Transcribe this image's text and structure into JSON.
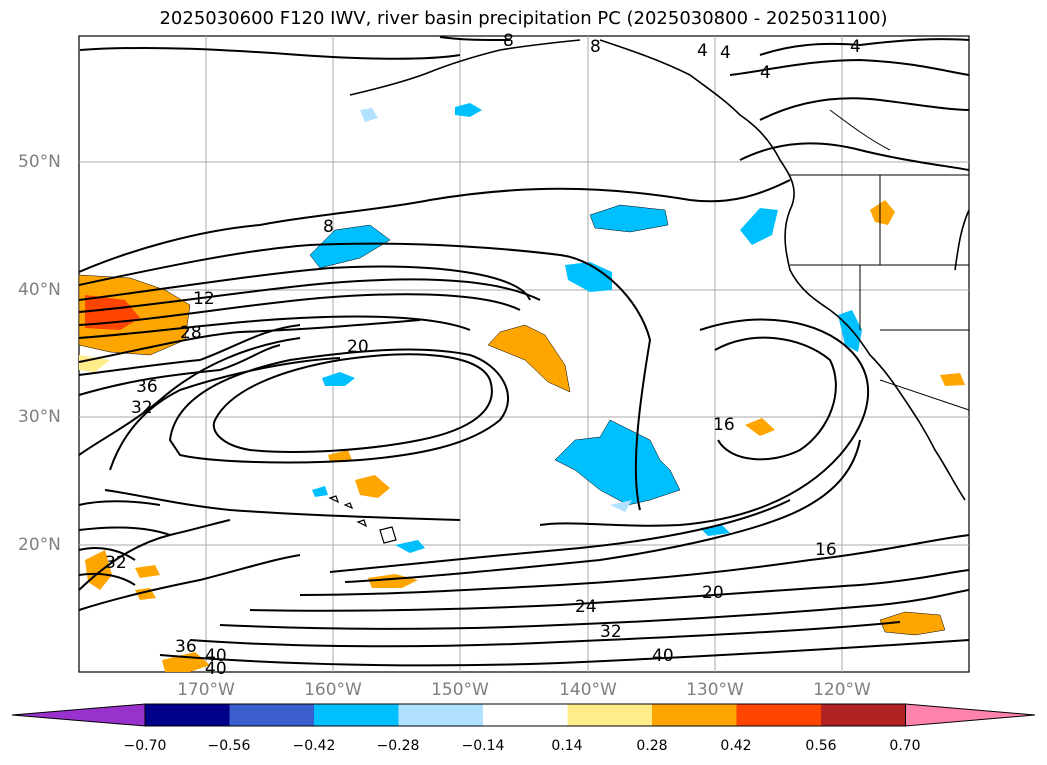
{
  "title": "2025030600 F120 IWV, river basin precipitation PC (2025030800 - 2025031100)",
  "lat_labels": [
    "50°N",
    "40°N",
    "30°N",
    "20°N"
  ],
  "lon_labels": [
    "170°W",
    "160°W",
    "150°W",
    "140°W",
    "130°W",
    "120°W"
  ],
  "contour_labels": [
    "8",
    "8",
    "4",
    "4",
    "4",
    "4",
    "8",
    "12",
    "28",
    "20",
    "36",
    "32",
    "16",
    "16",
    "32",
    "24",
    "20",
    "32",
    "36",
    "40",
    "40",
    "40"
  ],
  "colorbar": {
    "ticks": [
      "−0.70",
      "−0.56",
      "−0.42",
      "−0.28",
      "−0.14",
      "0.14",
      "0.28",
      "0.42",
      "0.56",
      "0.70"
    ],
    "colors": [
      "#9932cc",
      "#00008b",
      "#3a5fcd",
      "#00bfff",
      "#b0e2ff",
      "#ffffff",
      "#ffec8b",
      "#ffa500",
      "#ff4500",
      "#b22222",
      "#ff82ab"
    ]
  }
}
